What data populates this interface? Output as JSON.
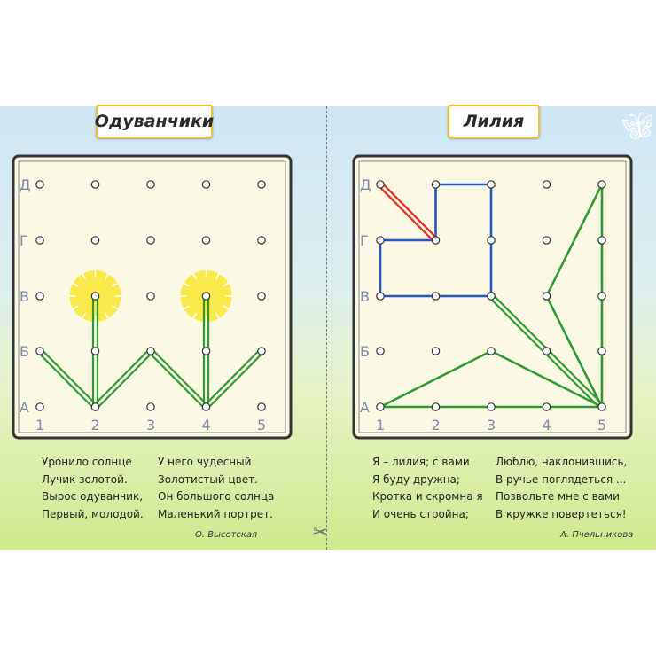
{
  "left": {
    "title": "Одуванчики",
    "row_labels": [
      "Д",
      "Г",
      "В",
      "Б",
      "А"
    ],
    "col_labels": [
      "1",
      "2",
      "3",
      "4",
      "5"
    ],
    "poem_col1": [
      "Уронило солнце",
      "Лучик золотой.",
      "Вырос одуванчик,",
      "Первый, молодой."
    ],
    "poem_col2": [
      "У него чудесный",
      "Золотистый цвет.",
      "Он большого солнца",
      "Маленький портрет."
    ],
    "author": "О. Высотская"
  },
  "right": {
    "title": "Лилия",
    "row_labels": [
      "Д",
      "Г",
      "В",
      "Б",
      "А"
    ],
    "col_labels": [
      "1",
      "2",
      "3",
      "4",
      "5"
    ],
    "poem_col1": [
      "Я – лилия; с вами",
      "Я буду дружна;",
      "Кротка и скромна я",
      "И очень стройна;"
    ],
    "poem_col2": [
      "Люблю, наклонившись,",
      "В ручье поглядеться ...",
      "Позвольте мне с вами",
      "В кружке повертеться!"
    ],
    "author": "А. Пчельникова"
  },
  "colors": {
    "green": "#2f9a35",
    "blue": "#2456c8",
    "red": "#e02a20",
    "sun": "#fbe84a"
  }
}
